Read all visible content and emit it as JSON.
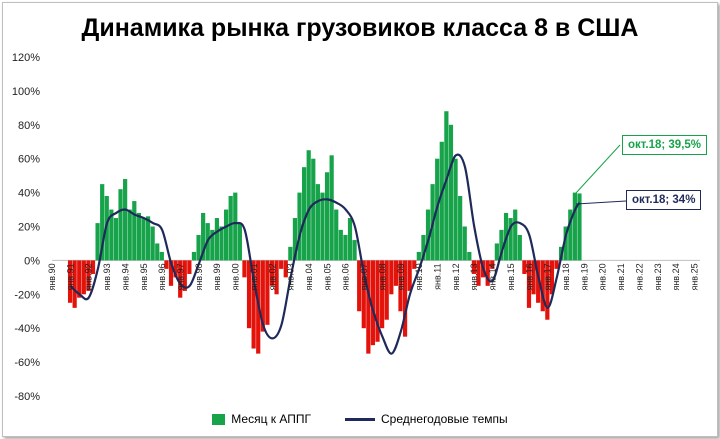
{
  "title": "Динамика рынка грузовиков класса 8 в США",
  "colors": {
    "positive_bar": "#16a34a",
    "negative_bar": "#e3120b",
    "line": "#1f2a5a"
  },
  "chart_data": {
    "type": "bar+line",
    "title": "Динамика рынка грузовиков класса 8 в США",
    "ylim": [
      -80,
      120
    ],
    "y_ticks": [
      "120%",
      "100%",
      "80%",
      "60%",
      "40%",
      "20%",
      "0%",
      "-20%",
      "-40%",
      "-60%",
      "-80%"
    ],
    "x_ticks": [
      "янв.90",
      "янв.91",
      "янв.92",
      "янв.93",
      "янв.94",
      "янв.95",
      "янв.96",
      "янв.97",
      "янв.98",
      "янв.99",
      "янв.00",
      "янв.01",
      "янв.02",
      "янв.03",
      "янв.04",
      "янв.05",
      "янв.06",
      "янв.07",
      "янв.08",
      "янв.09",
      "янв.10",
      "янв.11",
      "янв.12",
      "янв.13",
      "янв.14",
      "янв.15",
      "янв.16",
      "янв.17",
      "янв.18",
      "янв.19",
      "янв.20",
      "янв.21",
      "янв.22",
      "янв.23",
      "янв.24",
      "янв.25"
    ],
    "series": [
      {
        "name": "Месяц к АППГ",
        "type": "bar",
        "x": [
          1991.0,
          1991.25,
          1991.5,
          1991.75,
          1992.0,
          1992.25,
          1992.5,
          1992.75,
          1993.0,
          1993.25,
          1993.5,
          1993.75,
          1994.0,
          1994.25,
          1994.5,
          1994.75,
          1995.0,
          1995.25,
          1995.5,
          1995.75,
          1996.0,
          1996.25,
          1996.5,
          1996.75,
          1997.0,
          1997.25,
          1997.5,
          1997.75,
          1998.0,
          1998.25,
          1998.5,
          1998.75,
          1999.0,
          1999.25,
          1999.5,
          1999.75,
          2000.0,
          2000.25,
          2000.5,
          2000.75,
          2001.0,
          2001.25,
          2001.5,
          2001.75,
          2002.0,
          2002.25,
          2002.5,
          2002.75,
          2003.0,
          2003.25,
          2003.5,
          2003.75,
          2004.0,
          2004.25,
          2004.5,
          2004.75,
          2005.0,
          2005.25,
          2005.5,
          2005.75,
          2006.0,
          2006.25,
          2006.5,
          2006.75,
          2007.0,
          2007.25,
          2007.5,
          2007.75,
          2008.0,
          2008.25,
          2008.5,
          2008.75,
          2009.0,
          2009.25,
          2009.5,
          2009.75,
          2010.0,
          2010.25,
          2010.5,
          2010.75,
          2011.0,
          2011.25,
          2011.5,
          2011.75,
          2012.0,
          2012.25,
          2012.5,
          2012.75,
          2013.0,
          2013.25,
          2013.5,
          2013.75,
          2014.0,
          2014.25,
          2014.5,
          2014.75,
          2015.0,
          2015.25,
          2015.5,
          2015.75,
          2016.0,
          2016.25,
          2016.5,
          2016.75,
          2017.0,
          2017.25,
          2017.5,
          2017.75,
          2018.0,
          2018.25,
          2018.5,
          2018.75
        ],
        "values": [
          -25,
          -28,
          -22,
          -20,
          -18,
          -8,
          22,
          45,
          38,
          30,
          25,
          42,
          48,
          30,
          35,
          28,
          25,
          26,
          20,
          10,
          5,
          -5,
          -15,
          -10,
          -22,
          -18,
          -8,
          5,
          15,
          28,
          22,
          18,
          25,
          20,
          30,
          38,
          40,
          22,
          -10,
          -40,
          -52,
          -55,
          -42,
          -38,
          -15,
          -20,
          -5,
          -10,
          8,
          25,
          40,
          55,
          65,
          60,
          45,
          40,
          52,
          62,
          30,
          18,
          15,
          25,
          12,
          -30,
          -40,
          -55,
          -50,
          -48,
          -40,
          -35,
          -20,
          -15,
          -30,
          -45,
          -18,
          -5,
          5,
          15,
          30,
          45,
          60,
          70,
          88,
          80,
          60,
          38,
          20,
          5,
          -8,
          -15,
          -10,
          -15,
          -5,
          10,
          18,
          28,
          25,
          30,
          15,
          -8,
          -28,
          -20,
          -25,
          -30,
          -35,
          -20,
          -5,
          8,
          20,
          30,
          40,
          39.5
        ],
        "label": "Месяц к АППГ"
      },
      {
        "name": "Среднегодовые темпы",
        "type": "line",
        "x": [
          1991.0,
          1991.5,
          1992.0,
          1992.5,
          1993.0,
          1993.5,
          1994.0,
          1994.5,
          1995.0,
          1995.5,
          1996.0,
          1996.5,
          1997.0,
          1997.5,
          1998.0,
          1998.5,
          1999.0,
          1999.5,
          2000.0,
          2000.5,
          2001.0,
          2001.5,
          2002.0,
          2002.5,
          2003.0,
          2003.5,
          2004.0,
          2004.5,
          2005.0,
          2005.5,
          2006.0,
          2006.5,
          2007.0,
          2007.5,
          2008.0,
          2008.5,
          2009.0,
          2009.5,
          2010.0,
          2010.5,
          2011.0,
          2011.5,
          2012.0,
          2012.5,
          2013.0,
          2013.5,
          2014.0,
          2014.5,
          2015.0,
          2015.5,
          2016.0,
          2016.5,
          2017.0,
          2017.5,
          2018.0,
          2018.5,
          2018.75
        ],
        "values": [
          -15,
          -20,
          -22,
          -5,
          22,
          28,
          30,
          27,
          25,
          22,
          18,
          -2,
          -14,
          -15,
          -2,
          12,
          17,
          20,
          22,
          18,
          -12,
          -38,
          -46,
          -38,
          -10,
          15,
          30,
          35,
          36,
          34,
          30,
          20,
          -8,
          -30,
          -45,
          -55,
          -42,
          -20,
          -5,
          12,
          32,
          48,
          62,
          55,
          20,
          -5,
          -12,
          5,
          20,
          22,
          15,
          -10,
          -28,
          -10,
          15,
          30,
          34
        ]
      }
    ],
    "annotations": [
      "окт.18; 39,5%",
      "окт.18; 34%"
    ],
    "legend": [
      "Месяц к АППГ",
      "Среднегодовые темпы"
    ],
    "legend_position": "bottom"
  }
}
